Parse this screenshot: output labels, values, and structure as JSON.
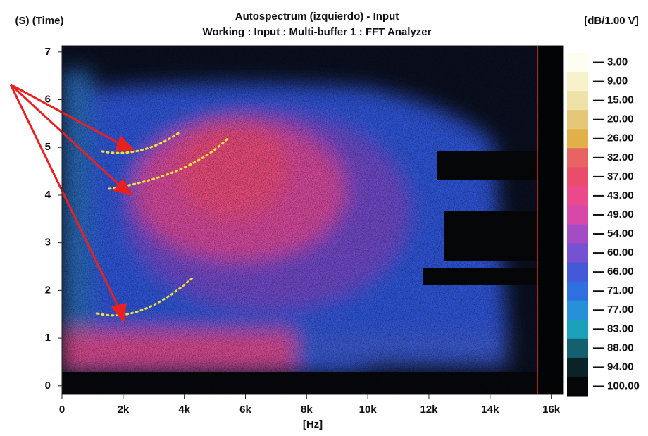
{
  "chart_data": {
    "type": "spectrogram",
    "title": "Autospectrum (izquierdo) - Input",
    "subtitle": "Working : Input : Multi-buffer 1 : FFT Analyzer",
    "y_label": "(S) (Time)",
    "x_label": "[Hz]",
    "xlim": [
      0,
      16400
    ],
    "ylim": [
      -0.18,
      7.13
    ],
    "xticks": [
      0,
      {
        "value": 2000,
        "label": "2k"
      },
      {
        "value": 4000,
        "label": "4k"
      },
      {
        "value": 6000,
        "label": "6k"
      },
      {
        "value": 8000,
        "label": "8k"
      },
      {
        "value": 10000,
        "label": "10k"
      },
      {
        "value": 12000,
        "label": "12k"
      },
      {
        "value": 14000,
        "label": "14k"
      },
      {
        "value": 16000,
        "label": "16k"
      }
    ],
    "yticks": [
      0,
      1,
      2,
      3,
      4,
      5,
      6,
      7
    ],
    "colorbar": {
      "label": "[dB/1.00 V]",
      "ticks": [
        {
          "value": 3,
          "label": "3.00"
        },
        {
          "value": 9,
          "label": "9.00"
        },
        {
          "value": 15,
          "label": "15.00"
        },
        {
          "value": 20,
          "label": "20.00"
        },
        {
          "value": 26,
          "label": "26.00"
        },
        {
          "value": 32,
          "label": "32.00"
        },
        {
          "value": 37,
          "label": "37.00"
        },
        {
          "value": 43,
          "label": "43.00"
        },
        {
          "value": 49,
          "label": "49.00"
        },
        {
          "value": 54,
          "label": "54.00"
        },
        {
          "value": 60,
          "label": "60.00"
        },
        {
          "value": 66,
          "label": "66.00"
        },
        {
          "value": 71,
          "label": "71.00"
        },
        {
          "value": 77,
          "label": "77.00"
        },
        {
          "value": 83,
          "label": "83.00"
        },
        {
          "value": 88,
          "label": "88.00"
        },
        {
          "value": 94,
          "label": "94.00"
        },
        {
          "value": 100,
          "label": "100.00"
        }
      ],
      "colors": [
        "#fffdf0",
        "#f8f2cc",
        "#eee2a8",
        "#e4c878",
        "#e2b048",
        "#e86464",
        "#ea4c6c",
        "#ea4a8c",
        "#d848a8",
        "#a44cc4",
        "#7452d2",
        "#4458d8",
        "#2e70e0",
        "#2890d8",
        "#1aa0b8",
        "#156070",
        "#0a2228",
        "#040608"
      ]
    }
  }
}
